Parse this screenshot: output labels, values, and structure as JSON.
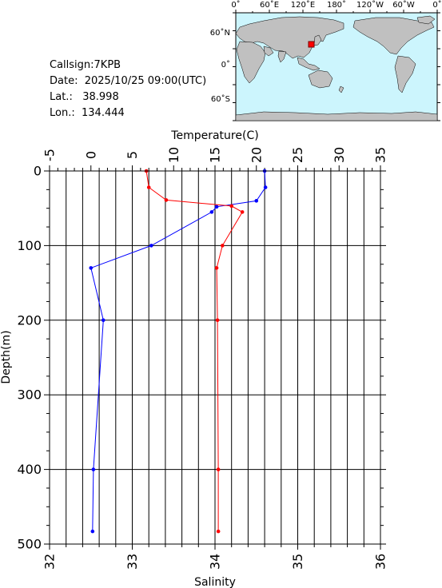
{
  "station": {
    "callsign_label": "Callsign:",
    "callsign": "7KPB",
    "date_label": "Date:",
    "date": "2025/10/25 09:00(UTC)",
    "lat_label": "Lat.:",
    "lat": "38.998",
    "lon_label": "Lon.:",
    "lon": "134.444"
  },
  "map": {
    "top_labels": [
      "0˚",
      "60˚E",
      "120˚E",
      "180˚",
      "120˚W",
      "60˚W",
      "0˚"
    ],
    "left_labels": [
      "60˚N",
      "0˚",
      "60˚S"
    ],
    "ocean_color": "#ccf5fd",
    "land_color": "#c0c0c0",
    "marker_color": "#ff0000"
  },
  "chart_data": {
    "type": "line",
    "title": "",
    "top_axis": {
      "label": "Temperature(C)",
      "range": [
        -5,
        35
      ],
      "ticks": [
        -5,
        0,
        5,
        10,
        15,
        20,
        25,
        30,
        35
      ]
    },
    "bottom_axis": {
      "label": "Salinity",
      "range": [
        32,
        36
      ],
      "ticks": [
        32,
        33,
        34,
        35,
        36
      ]
    },
    "y_axis": {
      "label": "Depth(m)",
      "range": [
        0,
        500
      ],
      "inverted": true,
      "ticks": [
        0,
        100,
        200,
        300,
        400,
        500
      ]
    },
    "grid": true,
    "series": [
      {
        "axis": "top",
        "color": "#0000ff",
        "points": [
          {
            "x": 21.0,
            "depth": 0
          },
          {
            "x": 21.1,
            "depth": 22
          },
          {
            "x": 20.0,
            "depth": 40
          },
          {
            "x": 15.2,
            "depth": 48
          },
          {
            "x": 14.6,
            "depth": 55
          },
          {
            "x": 7.3,
            "depth": 100
          },
          {
            "x": 0.0,
            "depth": 130
          },
          {
            "x": 1.5,
            "depth": 200
          },
          {
            "x": 0.3,
            "depth": 400
          },
          {
            "x": 0.2,
            "depth": 483
          }
        ]
      },
      {
        "axis": "bottom",
        "color": "#ff0000",
        "points": [
          {
            "x": 33.17,
            "depth": 0
          },
          {
            "x": 33.2,
            "depth": 22
          },
          {
            "x": 33.41,
            "depth": 39
          },
          {
            "x": 34.2,
            "depth": 47
          },
          {
            "x": 34.33,
            "depth": 55
          },
          {
            "x": 34.09,
            "depth": 100
          },
          {
            "x": 34.02,
            "depth": 130
          },
          {
            "x": 34.03,
            "depth": 200
          },
          {
            "x": 34.04,
            "depth": 400
          },
          {
            "x": 34.04,
            "depth": 483
          }
        ]
      }
    ]
  }
}
